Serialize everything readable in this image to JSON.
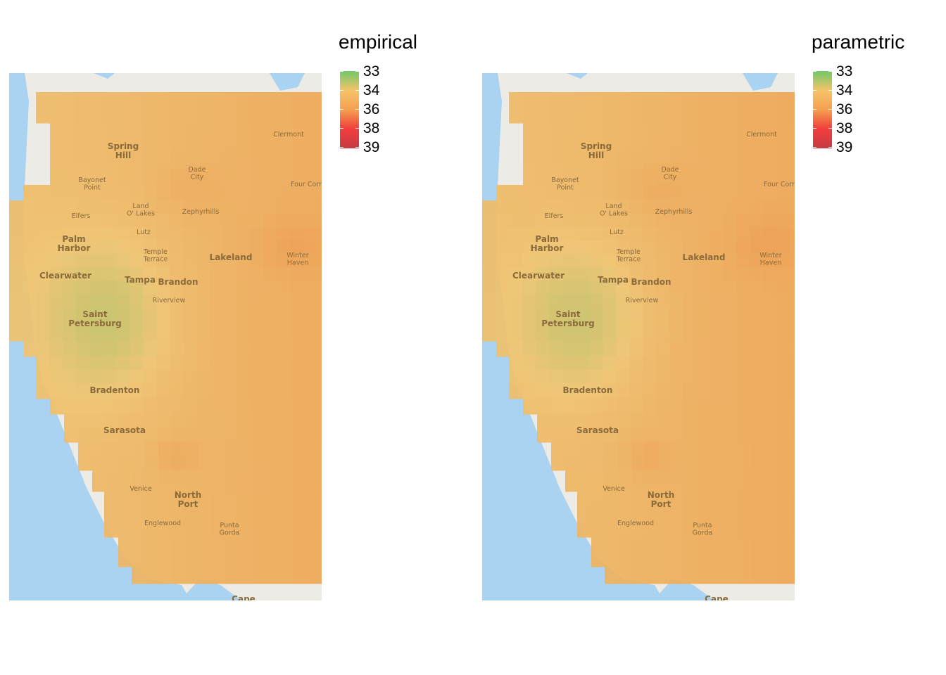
{
  "panels": [
    {
      "id": "empirical",
      "legend_title": "empirical",
      "legend_ticks": [
        "33",
        "34",
        "36",
        "38",
        "39"
      ]
    },
    {
      "id": "parametric",
      "legend_title": "parametric",
      "legend_ticks": [
        "33",
        "34",
        "36",
        "38",
        "39"
      ]
    }
  ],
  "colors": {
    "water": "#a9d3f0",
    "land": "#ecebe5",
    "scale_low": "#70c86a",
    "scale_mid_low": "#f5c46a",
    "scale_mid": "#f5a050",
    "scale_mid_high": "#f23d3d",
    "scale_high": "#c43c42"
  },
  "places": [
    {
      "name": "Spring",
      "name2": "Hill",
      "major": true
    },
    {
      "name": "Dade",
      "name2": "City",
      "major": false
    },
    {
      "name": "Clermont",
      "major": false
    },
    {
      "name": "Bayonet",
      "name2": "Point",
      "major": false
    },
    {
      "name": "Four Corr",
      "major": false
    },
    {
      "name": "Land",
      "name2": "O' Lakes",
      "major": false
    },
    {
      "name": "Zephyrhills",
      "major": false
    },
    {
      "name": "Elfers",
      "major": false
    },
    {
      "name": "Lutz",
      "major": false
    },
    {
      "name": "Palm",
      "name2": "Harbor",
      "major": true
    },
    {
      "name": "Temple",
      "name2": "Terrace",
      "major": false
    },
    {
      "name": "Lakeland",
      "major": true
    },
    {
      "name": "Winter",
      "name2": "Haven",
      "major": false
    },
    {
      "name": "Clearwater",
      "major": true
    },
    {
      "name": "Tampa",
      "major": true
    },
    {
      "name": "Brandon",
      "major": true
    },
    {
      "name": "Riverview",
      "major": false
    },
    {
      "name": "Saint",
      "name2": "Petersburg",
      "major": true
    },
    {
      "name": "Bradenton",
      "major": true
    },
    {
      "name": "Sarasota",
      "major": true
    },
    {
      "name": "Venice",
      "major": false
    },
    {
      "name": "North",
      "name2": "Port",
      "major": true
    },
    {
      "name": "Englewood",
      "major": false
    },
    {
      "name": "Punta",
      "name2": "Gorda",
      "major": false
    },
    {
      "name": "Cape",
      "major": true
    }
  ]
}
